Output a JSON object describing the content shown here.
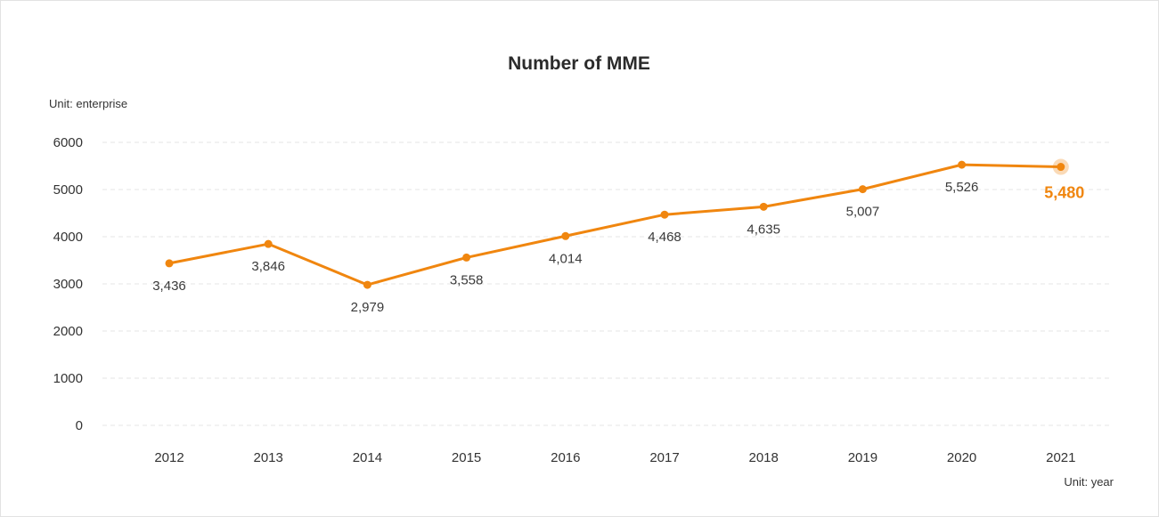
{
  "chart_data": {
    "type": "line",
    "title": "Number of MME",
    "y_unit_label": "Unit: enterprise",
    "x_unit_label": "Unit: year",
    "ylim": [
      0,
      6000
    ],
    "yticks": [
      "0",
      "1000",
      "2000",
      "3000",
      "4000",
      "5000",
      "6000"
    ],
    "categories": [
      "2012",
      "2013",
      "2014",
      "2015",
      "2016",
      "2017",
      "2018",
      "2019",
      "2020",
      "2021"
    ],
    "series": [
      {
        "values": [
          3436,
          3846,
          2979,
          3558,
          4014,
          4468,
          4635,
          5007,
          5526,
          5480
        ],
        "labels": [
          "3,436",
          "3,846",
          "2,979",
          "3,558",
          "4,014",
          "4,468",
          "4,635",
          "5,007",
          "5,526",
          "5,480"
        ],
        "color": "#f0860f"
      }
    ],
    "highlight_index": 9,
    "highlight_color": "#f0860f",
    "grid": true
  }
}
